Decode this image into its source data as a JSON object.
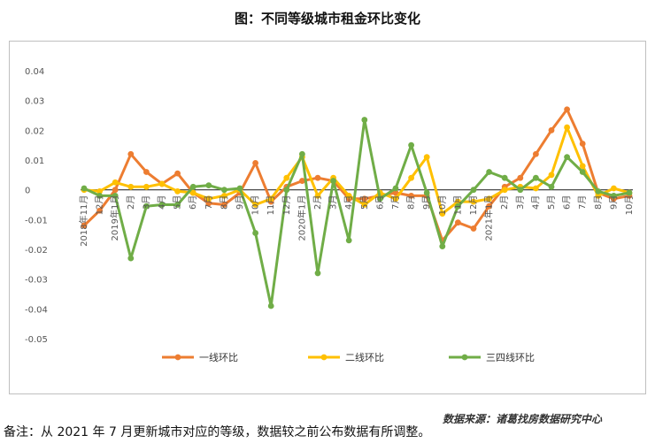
{
  "title": "图：不同等级城市租金环比变化",
  "source": "数据来源：诸葛找房数据研究中心",
  "footnote": "备注：从 2021 年 7 月更新城市对应的等级，数据较之前公布数据有所调整。",
  "chart_data": {
    "type": "line",
    "categories": [
      "2018年11月",
      "12月",
      "2019年1月",
      "2月",
      "3月",
      "4月",
      "5月",
      "6月",
      "7月",
      "8月",
      "9月",
      "10月",
      "11月",
      "12月",
      "2020年1月",
      "2月",
      "3月",
      "4月",
      "5月",
      "6月",
      "7月",
      "8月",
      "9月",
      "10月",
      "11月",
      "12月",
      "2021年1月",
      "2月",
      "3月",
      "4月",
      "5月",
      "6月",
      "7月",
      "8月",
      "9月",
      "10月"
    ],
    "ylim": [
      -0.05,
      0.04
    ],
    "yticks": [
      "0.04",
      "0.03",
      "0.02",
      "0.01",
      "0",
      "-0.01",
      "-0.02",
      "-0.03",
      "-0.04",
      "-0.05"
    ],
    "legend_position": "bottom",
    "grid": false,
    "series": [
      {
        "name": "一线环比",
        "color": "#ED7D31",
        "values": [
          -0.012,
          -0.007,
          0.0,
          0.012,
          0.006,
          0.002,
          0.0055,
          -0.001,
          -0.0045,
          -0.005,
          -0.001,
          0.009,
          -0.004,
          0.001,
          0.003,
          0.004,
          0.003,
          -0.003,
          -0.003,
          -0.002,
          -0.001,
          -0.002,
          -0.002,
          -0.017,
          -0.011,
          -0.013,
          -0.0055,
          0.001,
          0.004,
          0.012,
          0.02,
          0.027,
          0.0155,
          -0.001,
          -0.003,
          -0.002
        ]
      },
      {
        "name": "二线环比",
        "color": "#FFC000",
        "values": [
          0.0,
          -0.0005,
          0.0025,
          0.001,
          0.001,
          0.002,
          -0.0005,
          -0.001,
          -0.003,
          -0.002,
          0.0,
          -0.005,
          -0.003,
          0.004,
          0.011,
          -0.002,
          0.004,
          -0.002,
          -0.005,
          -0.001,
          -0.003,
          0.004,
          0.011,
          -0.008,
          -0.004,
          -0.004,
          -0.003,
          0.0,
          0.001,
          0.0005,
          0.005,
          0.021,
          0.008,
          -0.002,
          0.0005,
          -0.001
        ]
      },
      {
        "name": "三四线环比",
        "color": "#70AD47",
        "values": [
          0.0005,
          -0.002,
          -0.002,
          -0.023,
          -0.0055,
          -0.005,
          -0.005,
          0.001,
          0.0015,
          0.0,
          0.0005,
          -0.0145,
          -0.039,
          0.0,
          0.012,
          -0.028,
          0.003,
          -0.017,
          0.0235,
          -0.003,
          0.0005,
          0.015,
          -0.001,
          -0.019,
          -0.0055,
          0.0,
          0.006,
          0.004,
          0.0,
          0.004,
          0.001,
          0.011,
          0.006,
          -0.0005,
          -0.002,
          -0.001
        ]
      }
    ]
  }
}
